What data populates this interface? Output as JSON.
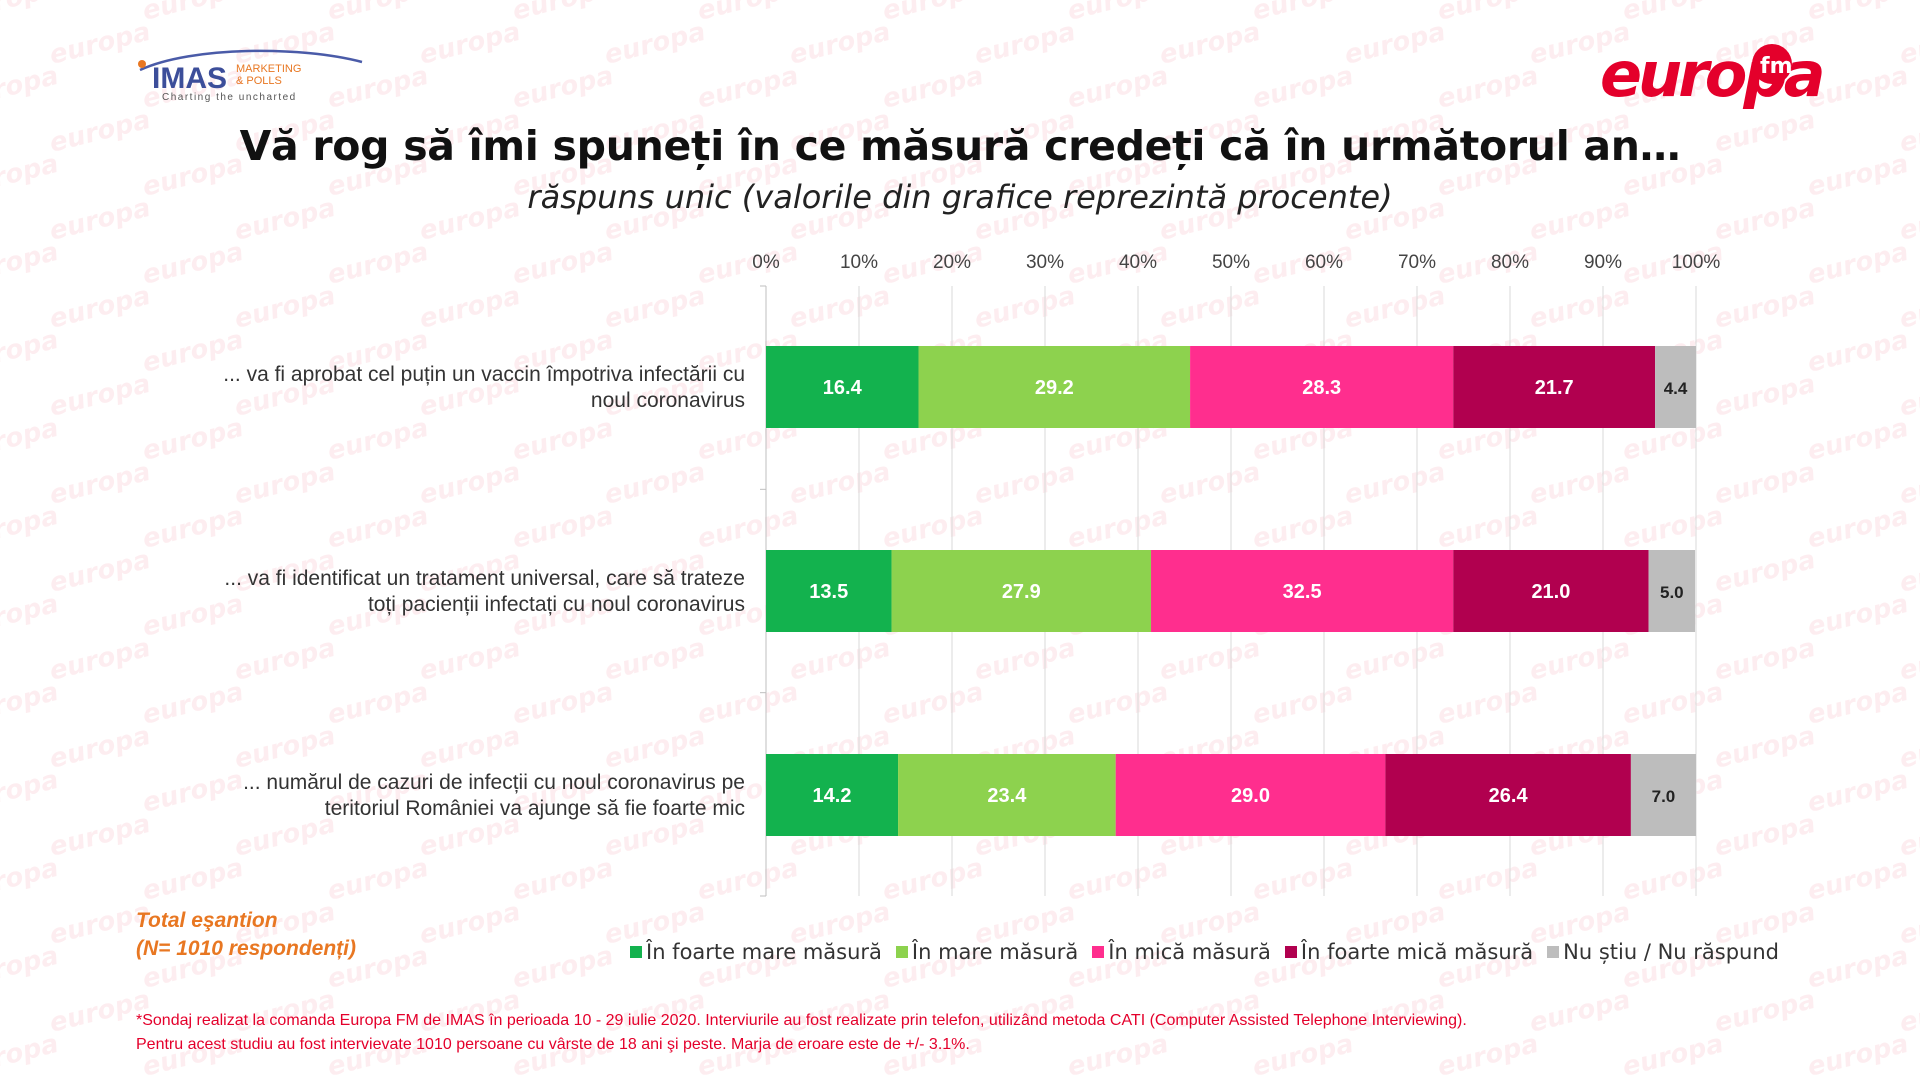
{
  "branding": {
    "imas_name": "IMAS",
    "imas_line1": "MARKETING",
    "imas_line2": "& POLLS",
    "imas_tagline": "Charting the uncharted",
    "europa_name": "europa",
    "europa_fm": "fm",
    "watermark_text": "europa"
  },
  "colors": {
    "foarte_mare": "#13B24E",
    "mare": "#8DD24E",
    "mica": "#FF2E8E",
    "foarte_mica": "#B1004F",
    "nu_stiu": "#BDBDBD",
    "accent_orange": "#E87722",
    "accent_red": "#E4002B"
  },
  "title": "Vă rog să îmi spuneți în ce măsură credeți că în următorul an…",
  "subtitle": "răspuns unic (valorile din grafice reprezintă procente)",
  "sample": {
    "total": "Total eşantion",
    "n": "(N= 1010 respondenți)"
  },
  "chart_data": {
    "type": "bar",
    "orientation": "horizontal",
    "stacked": true,
    "xlim": [
      0,
      100
    ],
    "xticks": [
      "0%",
      "10%",
      "20%",
      "30%",
      "40%",
      "50%",
      "60%",
      "70%",
      "80%",
      "90%",
      "100%"
    ],
    "grid": true,
    "legend_position": "bottom",
    "categories": [
      [
        "... va fi aprobat cel puțin un vaccin împotriva infectării cu",
        "noul coronavirus"
      ],
      [
        "... va fi identificat un tratament universal, care să trateze",
        "toți pacienții infectați cu noul coronavirus"
      ],
      [
        "... numărul de cazuri de infecții cu noul coronavirus pe",
        "teritoriul României va ajunge să fie foarte mic"
      ]
    ],
    "series": [
      {
        "name": "În foarte mare măsură",
        "color": "#13B24E",
        "label_color": "#ffffff",
        "values": [
          16.4,
          13.5,
          14.2
        ]
      },
      {
        "name": "În mare măsură",
        "color": "#8DD24E",
        "label_color": "#ffffff",
        "values": [
          29.2,
          27.9,
          23.4
        ]
      },
      {
        "name": "În mică măsură",
        "color": "#FF2E8E",
        "label_color": "#ffffff",
        "values": [
          28.3,
          32.5,
          29.0
        ]
      },
      {
        "name": "În foarte mică măsură",
        "color": "#B1004F",
        "label_color": "#ffffff",
        "values": [
          21.7,
          21.0,
          26.4
        ]
      },
      {
        "name": "Nu știu / Nu răspund",
        "color": "#BDBDBD",
        "label_color": "#222222",
        "values": [
          4.4,
          5.0,
          7.0
        ]
      }
    ]
  },
  "footnote": {
    "line1": "*Sondaj realizat la comanda Europa FM de IMAS în perioada  10 - 29 iulie 2020. Interviurile au fost realizate prin telefon, utilizând metoda CATI (Computer Assisted Telephone Interviewing).",
    "line2": "Pentru acest studiu au fost intervievate 1010 persoane cu vârste de 18 ani şi peste. Marja de eroare este de +/- 3.1%."
  }
}
